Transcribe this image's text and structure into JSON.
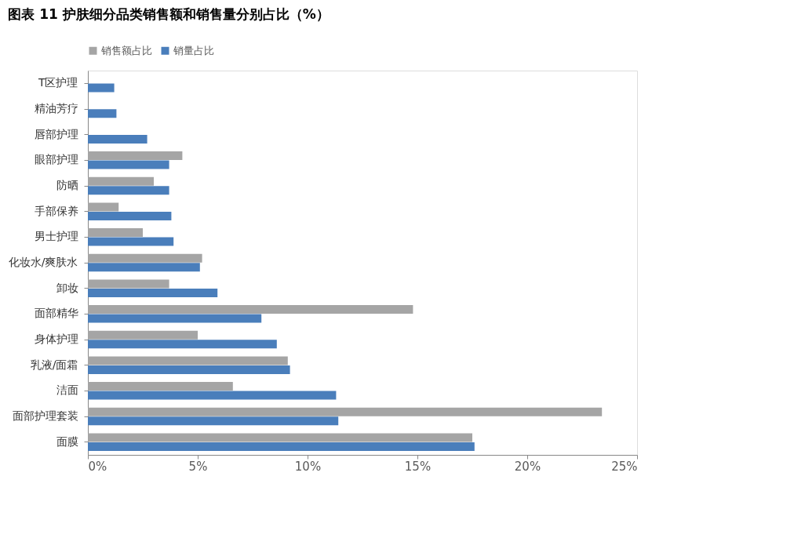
{
  "chart_data": {
    "type": "bar",
    "orientation": "horizontal",
    "title": "图表 11 护肤细分品类销售额和销售量分别占比（%）",
    "categories": [
      "T区护理",
      "精油芳疗",
      "唇部护理",
      "眼部护理",
      "防晒",
      "手部保养",
      "男士护理",
      "化妆水/爽肤水",
      "卸妆",
      "面部精华",
      "身体护理",
      "乳液/面霜",
      "洁面",
      "面部护理套装",
      "面膜"
    ],
    "series": [
      {
        "name": "销售额占比",
        "color": "#a5a5a5",
        "values": [
          null,
          null,
          null,
          4.3,
          3.0,
          1.4,
          2.5,
          5.2,
          3.7,
          14.8,
          5.0,
          9.1,
          6.6,
          23.4,
          17.5
        ]
      },
      {
        "name": "销量占比",
        "color": "#4a7ebb",
        "values": [
          1.2,
          1.3,
          2.7,
          3.7,
          3.7,
          3.8,
          3.9,
          5.1,
          5.9,
          7.9,
          8.6,
          9.2,
          11.3,
          11.4,
          17.6
        ]
      }
    ],
    "xlim": [
      0,
      25
    ],
    "xticks": [
      {
        "value": 0,
        "label": "0%"
      },
      {
        "value": 5,
        "label": "5%"
      },
      {
        "value": 10,
        "label": "10%"
      },
      {
        "value": 15,
        "label": "15%"
      },
      {
        "value": 20,
        "label": "20%"
      },
      {
        "value": 25,
        "label": "25%"
      }
    ],
    "grid": false,
    "legend": "top"
  }
}
